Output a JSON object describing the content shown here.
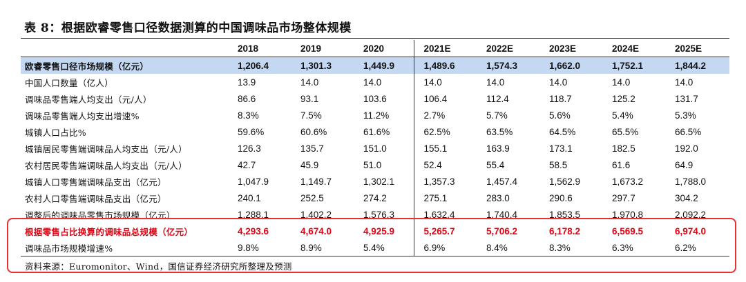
{
  "title": "表 8：根据欧睿零售口径数据测算的中国调味品市场整体规模",
  "columns": [
    "2018",
    "2019",
    "2020",
    "2021E",
    "2022E",
    "2023E",
    "2024E",
    "2025E"
  ],
  "rows": [
    {
      "label": "欧睿零售口径市场规模（亿元）",
      "values": [
        "1,206.4",
        "1,301.3",
        "1,449.9",
        "1,489.6",
        "1,574.3",
        "1,662.0",
        "1,752.1",
        "1,844.2"
      ]
    },
    {
      "label": "中国人口数量（亿人）",
      "values": [
        "13.9",
        "14.0",
        "14.0",
        "14.0",
        "14.0",
        "14.0",
        "14.0",
        "14.0"
      ]
    },
    {
      "label": "调味品零售端人均支出（元/人）",
      "values": [
        "86.6",
        "93.1",
        "103.6",
        "106.4",
        "112.4",
        "118.7",
        "125.2",
        "131.7"
      ]
    },
    {
      "label": "调味品零售端人均支出增速%",
      "values": [
        "8.3%",
        "7.5%",
        "11.2%",
        "2.7%",
        "5.7%",
        "5.6%",
        "5.4%",
        "5.3%"
      ]
    },
    {
      "label": "城镇人口占比%",
      "values": [
        "59.6%",
        "60.6%",
        "61.6%",
        "62.5%",
        "63.5%",
        "64.5%",
        "65.5%",
        "66.5%"
      ]
    },
    {
      "label": "城镇居民零售端调味品人均支出（元/人）",
      "values": [
        "126.3",
        "135.7",
        "151.0",
        "155.1",
        "163.9",
        "173.1",
        "182.5",
        "192.0"
      ]
    },
    {
      "label": "农村居民零售端调味品人均支出（元/人）",
      "values": [
        "42.7",
        "45.9",
        "51.0",
        "52.4",
        "55.4",
        "58.5",
        "61.6",
        "64.9"
      ]
    },
    {
      "label": "城镇人口零售端调味品支出（亿元）",
      "values": [
        "1,047.9",
        "1,149.7",
        "1,302.1",
        "1,357.3",
        "1,457.4",
        "1,562.9",
        "1,673.2",
        "1,788.0"
      ]
    },
    {
      "label": "农村人口零售端调味品支出（亿元）",
      "values": [
        "240.1",
        "252.5",
        "274.2",
        "275.1",
        "283.0",
        "290.6",
        "297.7",
        "304.2"
      ]
    },
    {
      "label": "调整后的调味品零售市场规模（亿元）",
      "values": [
        "1,288.1",
        "1,402.2",
        "1,576.3",
        "1,632.4",
        "1,740.4",
        "1,853.5",
        "1,970.8",
        "2,092.2"
      ]
    },
    {
      "label": "根据零售占比换算的调味品总规模（亿元）",
      "values": [
        "4,293.6",
        "4,674.0",
        "4,925.9",
        "5,265.7",
        "5,706.2",
        "6,178.2",
        "6,569.5",
        "6,974.0"
      ]
    },
    {
      "label": "调味品市场规模增速%",
      "values": [
        "9.8%",
        "8.9%",
        "5.4%",
        "6.9%",
        "8.4%",
        "8.3%",
        "6.3%",
        "6.2%"
      ]
    }
  ],
  "source": "资料来源：Euromonitor、Wind，国信证券经济研究所整理及预测",
  "colors": {
    "highlight_row": "#c4d8f2",
    "red_text": "#e60012",
    "annotation_box": "#e83030"
  }
}
